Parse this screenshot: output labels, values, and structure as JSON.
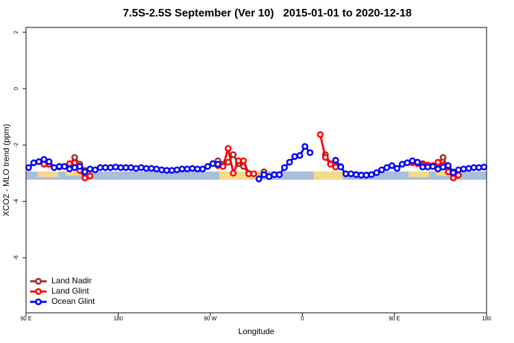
{
  "chart_data": {
    "type": "line",
    "title": "7.5S-2.5S September (Ver 10)   2015-01-01 to 2020-12-18",
    "x_label": "Longitude",
    "y_label": "XCO2 - MLO trend (ppm)",
    "x": [
      92.5,
      97.5,
      102.5,
      107.5,
      112.5,
      117.5,
      122.5,
      127.5,
      132.5,
      137.5,
      142.5,
      147.5,
      152.5,
      157.5,
      162.5,
      167.5,
      172.5,
      177.5,
      182.5,
      187.5,
      192.5,
      197.5,
      202.5,
      207.5,
      212.5,
      217.5,
      222.5,
      227.5,
      232.5,
      237.5,
      242.5,
      247.5,
      252.5,
      257.5,
      262.5,
      267.5,
      272.5,
      277.5,
      282.5,
      287.5,
      292.5,
      297.5,
      302.5,
      307.5,
      312.5,
      317.5,
      322.5,
      327.5,
      332.5,
      337.5,
      342.5,
      347.5,
      352.5,
      357.5,
      362.5,
      367.5,
      372.5,
      377.5,
      382.5,
      387.5,
      392.5,
      397.5,
      402.5,
      407.5,
      412.5,
      417.5,
      422.5,
      427.5,
      432.5,
      437.5,
      442.5,
      447.5,
      452.5,
      457.5,
      462.5,
      467.5,
      472.5,
      477.5,
      482.5,
      487.5,
      492.5,
      497.5,
      502.5,
      507.5,
      512.5,
      517.5,
      522.5,
      527.5,
      532.5,
      537.5
    ],
    "series": [
      {
        "name": "Land Nadir",
        "color": "#a52a2a",
        "values": [
          null,
          null,
          null,
          -2.68,
          -2.68,
          null,
          -2.78,
          null,
          -2.73,
          -2.44,
          -2.68,
          -2.9,
          null,
          null,
          null,
          null,
          null,
          null,
          null,
          null,
          null,
          null,
          null,
          null,
          null,
          null,
          null,
          null,
          null,
          null,
          null,
          null,
          null,
          null,
          null,
          null,
          null,
          -2.56,
          -2.68,
          -2.61,
          -2.34,
          -2.66,
          -2.76,
          -3.0,
          null,
          null,
          -2.95,
          null,
          null,
          null,
          null,
          null,
          null,
          null,
          null,
          null,
          null,
          null,
          -2.34,
          -2.66,
          -2.76,
          null,
          null,
          null,
          null,
          null,
          null,
          null,
          null,
          null,
          null,
          null,
          null,
          null,
          null,
          null,
          -2.61,
          -2.66,
          -2.71,
          null,
          -2.68,
          -2.44,
          -2.83,
          -2.95,
          null,
          null,
          null,
          null,
          null,
          null
        ]
      },
      {
        "name": "Land Glint",
        "color": "#ff0000",
        "values": [
          null,
          null,
          null,
          -2.68,
          -2.68,
          null,
          -2.76,
          null,
          -2.66,
          -2.63,
          -2.9,
          -3.17,
          -3.1,
          null,
          null,
          null,
          null,
          null,
          null,
          null,
          null,
          null,
          null,
          null,
          null,
          null,
          null,
          null,
          null,
          null,
          null,
          null,
          null,
          null,
          null,
          null,
          null,
          -2.73,
          -2.76,
          -2.12,
          -3.0,
          -2.56,
          -2.56,
          -3.02,
          -3.02,
          null,
          null,
          null,
          null,
          null,
          null,
          null,
          null,
          null,
          null,
          null,
          null,
          -1.63,
          -2.44,
          -2.68,
          -2.78,
          -2.76,
          null,
          null,
          null,
          null,
          null,
          null,
          null,
          null,
          null,
          null,
          null,
          null,
          null,
          -2.63,
          -2.66,
          -2.71,
          -2.71,
          -2.73,
          -2.61,
          -2.71,
          -2.95,
          -3.17,
          -3.07,
          null,
          null,
          null,
          null,
          null
        ]
      },
      {
        "name": "Ocean Glint",
        "color": "#0000ff",
        "values": [
          -2.8,
          -2.63,
          -2.59,
          -2.51,
          -2.59,
          -2.8,
          -2.76,
          -2.76,
          -2.85,
          -2.8,
          -2.76,
          -2.95,
          -2.85,
          -2.88,
          -2.8,
          -2.8,
          -2.8,
          -2.78,
          -2.8,
          -2.8,
          -2.8,
          -2.83,
          -2.8,
          -2.83,
          -2.83,
          -2.85,
          -2.88,
          -2.9,
          -2.9,
          -2.88,
          -2.85,
          -2.85,
          -2.83,
          -2.85,
          -2.85,
          -2.76,
          -2.66,
          -2.68,
          null,
          null,
          null,
          null,
          null,
          null,
          null,
          -3.2,
          -3.05,
          -3.12,
          -3.05,
          -3.05,
          -2.8,
          -2.61,
          -2.41,
          -2.37,
          -2.05,
          -2.27,
          null,
          null,
          null,
          null,
          -2.54,
          -2.78,
          -3.02,
          -3.02,
          -3.05,
          -3.07,
          -3.07,
          -3.05,
          -2.98,
          -2.88,
          -2.8,
          -2.73,
          -2.83,
          -2.68,
          -2.63,
          -2.56,
          -2.61,
          -2.78,
          -2.78,
          -2.76,
          -2.85,
          -2.78,
          -2.73,
          -2.98,
          -2.88,
          -2.85,
          -2.83,
          -2.8,
          -2.8,
          -2.78
        ]
      }
    ],
    "xlim": [
      90,
      540
    ],
    "xticks": [
      {
        "value": 90,
        "label": "90 E"
      },
      180,
      {
        "value": 270,
        "label": "90 W"
      },
      {
        "value": 360,
        "label": "0"
      },
      {
        "value": 450,
        "label": "90 E"
      },
      {
        "value": 540,
        "label": "180"
      }
    ],
    "ylim": [
      -7.95,
      2.17
    ],
    "yticks": [
      -6,
      -4,
      -2,
      0,
      2
    ],
    "legend": "bottom-left"
  }
}
